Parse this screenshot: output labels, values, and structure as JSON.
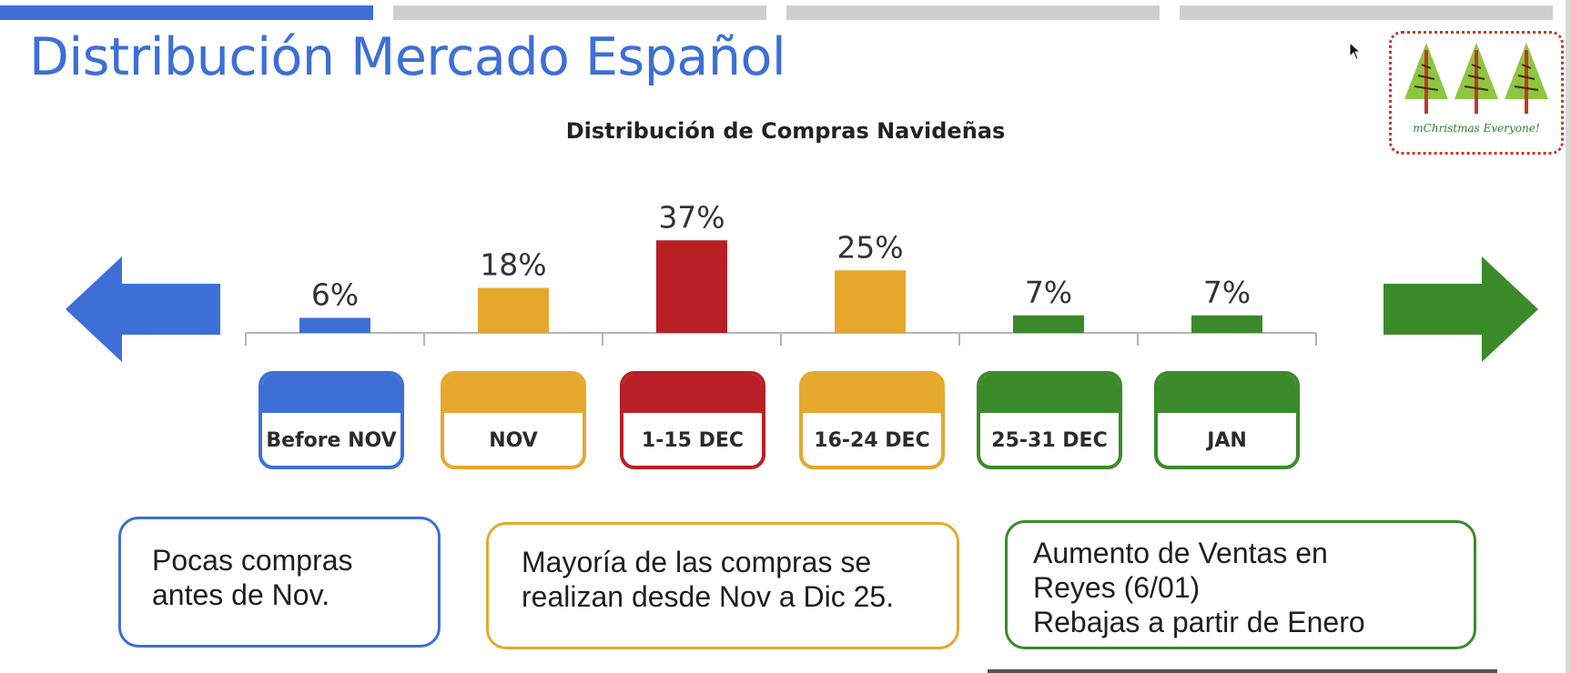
{
  "progress": {
    "segments": [
      {
        "color": "#3d6fd6"
      },
      {
        "color": "#cfcfcf"
      },
      {
        "color": "#cfcfcf"
      },
      {
        "color": "#cfcfcf"
      }
    ]
  },
  "page": {
    "title": "Distribución Mercado Español"
  },
  "logo": {
    "text": "mChristmas Everyone!",
    "tree_color": "#8dc63f",
    "trunk_color": "#c0392b"
  },
  "colors": {
    "blue": "#3d6fd6",
    "orange": "#e6a82c",
    "red": "#b82025",
    "green": "#3b8a2a"
  },
  "chart_data": {
    "type": "bar",
    "title": "Distribución de Compras Navideñas",
    "categories": [
      "Before NOV",
      "NOV",
      "1-15 DEC",
      "16-24 DEC",
      "25-31 DEC",
      "JAN"
    ],
    "values": [
      6,
      18,
      37,
      25,
      7,
      7
    ],
    "value_labels": [
      "6%",
      "18%",
      "37%",
      "25%",
      "7%",
      "7%"
    ],
    "bar_colors": [
      "#3d6fd6",
      "#e6a82c",
      "#b82025",
      "#e6a82c",
      "#3b8a2a",
      "#3b8a2a"
    ],
    "unit": "%",
    "xlabel": "",
    "ylabel": "",
    "grid": false,
    "legend": "none"
  },
  "arrows": {
    "left_color": "#3d6fd6",
    "right_color": "#3b8a2a"
  },
  "calendar": [
    {
      "label": "Before NOV",
      "color": "#3d6fd6"
    },
    {
      "label": "NOV",
      "color": "#e6a82c"
    },
    {
      "label": "1-15 DEC",
      "color": "#b82025"
    },
    {
      "label": "16-24 DEC",
      "color": "#e6a82c"
    },
    {
      "label": "25-31 DEC",
      "color": "#3b8a2a"
    },
    {
      "label": "JAN",
      "color": "#3b8a2a"
    }
  ],
  "notes": [
    {
      "lines": [
        "Pocas compras",
        "antes de Nov."
      ],
      "color": "#3d6fd6"
    },
    {
      "lines": [
        "Mayoría de las compras se",
        "realizan desde Nov a Dic 25."
      ],
      "color": "#e6a82c"
    },
    {
      "lines": [
        "Aumento de Ventas en",
        "Reyes (6/01)",
        "Rebajas a partir de Enero"
      ],
      "color": "#3b8a2a"
    }
  ]
}
